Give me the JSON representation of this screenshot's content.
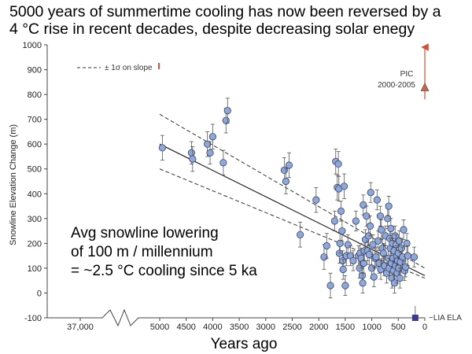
{
  "headline": {
    "line1": "5000 years of summertime cooling has now been reversed by a",
    "line2": "4 °C rise in recent decades, despite decreasing solar enegy"
  },
  "chart_data": {
    "type": "scatter",
    "xlabel": "Years ago",
    "ylabel": "Snowline Elevation Change (m)",
    "xlim": [
      5000,
      0
    ],
    "ylim": [
      -100,
      1000
    ],
    "y_ticks": [
      -100,
      0,
      100,
      200,
      300,
      400,
      500,
      600,
      700,
      800,
      900,
      1000
    ],
    "x_ticks": [
      5000,
      4500,
      4000,
      3500,
      3000,
      2500,
      2000,
      1500,
      1000,
      500,
      0
    ],
    "x_break_label": "37,000",
    "legend": {
      "label": "± 1σ on slope",
      "placement": "top-left"
    },
    "annotation": "Avg snowline lowering\nof 100 m / millennium\n= ~2.5 °C cooling since 5 ka",
    "pic": {
      "label1": "PIC",
      "label2": "2000-2005",
      "x": 0,
      "y": 830,
      "err_low": 780
    },
    "lia": {
      "label": "~LIA ELA",
      "x": 180,
      "y": -100
    },
    "fit_line": {
      "x": [
        5000,
        0
      ],
      "y": [
        600,
        70
      ]
    },
    "sigma_upper": {
      "x": [
        5000,
        0
      ],
      "y": [
        720,
        100
      ]
    },
    "sigma_lower": {
      "x": [
        5000,
        0
      ],
      "y": [
        500,
        60
      ]
    },
    "colors": {
      "point": "#8fa8d8",
      "point_edge": "#34406a",
      "arrow": "#d05038",
      "lia": "#3b3b8a"
    },
    "points": [
      {
        "x": 4950,
        "y": 585,
        "e": 50
      },
      {
        "x": 4400,
        "y": 565,
        "e": 45
      },
      {
        "x": 4380,
        "y": 540,
        "e": 50
      },
      {
        "x": 4100,
        "y": 600,
        "e": 50
      },
      {
        "x": 4050,
        "y": 565,
        "e": 45
      },
      {
        "x": 4000,
        "y": 630,
        "e": 50
      },
      {
        "x": 3800,
        "y": 525,
        "e": 50
      },
      {
        "x": 3750,
        "y": 695,
        "e": 50
      },
      {
        "x": 3720,
        "y": 735,
        "e": 50
      },
      {
        "x": 2650,
        "y": 495,
        "e": 50
      },
      {
        "x": 2620,
        "y": 450,
        "e": 50
      },
      {
        "x": 2560,
        "y": 515,
        "e": 50
      },
      {
        "x": 2350,
        "y": 235,
        "e": 50
      },
      {
        "x": 2050,
        "y": 375,
        "e": 50
      },
      {
        "x": 1900,
        "y": 145,
        "e": 50
      },
      {
        "x": 1850,
        "y": 190,
        "e": 50
      },
      {
        "x": 1780,
        "y": 30,
        "e": 50
      },
      {
        "x": 1700,
        "y": 290,
        "e": 40
      },
      {
        "x": 1680,
        "y": 530,
        "e": 50
      },
      {
        "x": 1650,
        "y": 425,
        "e": 50
      },
      {
        "x": 1630,
        "y": 520,
        "e": 50
      },
      {
        "x": 1620,
        "y": 420,
        "e": 50
      },
      {
        "x": 1610,
        "y": 160,
        "e": 40
      },
      {
        "x": 1600,
        "y": 200,
        "e": 40
      },
      {
        "x": 1580,
        "y": 330,
        "e": 40
      },
      {
        "x": 1560,
        "y": 250,
        "e": 40
      },
      {
        "x": 1550,
        "y": 130,
        "e": 40
      },
      {
        "x": 1540,
        "y": 95,
        "e": 40
      },
      {
        "x": 1520,
        "y": 430,
        "e": 50
      },
      {
        "x": 1500,
        "y": 30,
        "e": 40
      },
      {
        "x": 1480,
        "y": 150,
        "e": 40
      },
      {
        "x": 1450,
        "y": 195,
        "e": 40
      },
      {
        "x": 1400,
        "y": 150,
        "e": 40
      },
      {
        "x": 1350,
        "y": 130,
        "e": 40
      },
      {
        "x": 1300,
        "y": 290,
        "e": 40
      },
      {
        "x": 1250,
        "y": 150,
        "e": 40
      },
      {
        "x": 1230,
        "y": 100,
        "e": 40
      },
      {
        "x": 1220,
        "y": 160,
        "e": 40
      },
      {
        "x": 1200,
        "y": 140,
        "e": 40
      },
      {
        "x": 1180,
        "y": 70,
        "e": 40
      },
      {
        "x": 1170,
        "y": 40,
        "e": 40
      },
      {
        "x": 1160,
        "y": 355,
        "e": 40
      },
      {
        "x": 1150,
        "y": 120,
        "e": 40
      },
      {
        "x": 1140,
        "y": 170,
        "e": 40
      },
      {
        "x": 1120,
        "y": 215,
        "e": 40
      },
      {
        "x": 1100,
        "y": 310,
        "e": 40
      },
      {
        "x": 1080,
        "y": 170,
        "e": 40
      },
      {
        "x": 1060,
        "y": 230,
        "e": 40
      },
      {
        "x": 1050,
        "y": 155,
        "e": 40
      },
      {
        "x": 1030,
        "y": 270,
        "e": 40
      },
      {
        "x": 1020,
        "y": 405,
        "e": 40
      },
      {
        "x": 1000,
        "y": 100,
        "e": 40
      },
      {
        "x": 980,
        "y": 195,
        "e": 40
      },
      {
        "x": 960,
        "y": 65,
        "e": 40
      },
      {
        "x": 940,
        "y": 140,
        "e": 40
      },
      {
        "x": 920,
        "y": 145,
        "e": 40
      },
      {
        "x": 900,
        "y": 375,
        "e": 40
      },
      {
        "x": 880,
        "y": 210,
        "e": 40
      },
      {
        "x": 860,
        "y": 120,
        "e": 40
      },
      {
        "x": 840,
        "y": 310,
        "e": 40
      },
      {
        "x": 830,
        "y": 95,
        "e": 40
      },
      {
        "x": 820,
        "y": 255,
        "e": 40
      },
      {
        "x": 800,
        "y": 180,
        "e": 40
      },
      {
        "x": 780,
        "y": 160,
        "e": 40
      },
      {
        "x": 760,
        "y": 110,
        "e": 40
      },
      {
        "x": 740,
        "y": 230,
        "e": 40
      },
      {
        "x": 720,
        "y": 80,
        "e": 40
      },
      {
        "x": 700,
        "y": 300,
        "e": 40
      },
      {
        "x": 690,
        "y": 140,
        "e": 40
      },
      {
        "x": 680,
        "y": 350,
        "e": 40
      },
      {
        "x": 670,
        "y": 100,
        "e": 40
      },
      {
        "x": 660,
        "y": 220,
        "e": 40
      },
      {
        "x": 650,
        "y": 180,
        "e": 40
      },
      {
        "x": 640,
        "y": 260,
        "e": 40
      },
      {
        "x": 630,
        "y": 120,
        "e": 40
      },
      {
        "x": 620,
        "y": 60,
        "e": 40
      },
      {
        "x": 610,
        "y": 200,
        "e": 40
      },
      {
        "x": 600,
        "y": 140,
        "e": 40
      },
      {
        "x": 590,
        "y": 90,
        "e": 40
      },
      {
        "x": 580,
        "y": 170,
        "e": 40
      },
      {
        "x": 570,
        "y": 40,
        "e": 40
      },
      {
        "x": 560,
        "y": 230,
        "e": 40
      },
      {
        "x": 550,
        "y": 110,
        "e": 40
      },
      {
        "x": 540,
        "y": 195,
        "e": 40
      },
      {
        "x": 530,
        "y": 150,
        "e": 40
      },
      {
        "x": 520,
        "y": 80,
        "e": 40
      },
      {
        "x": 510,
        "y": 130,
        "e": 40
      },
      {
        "x": 500,
        "y": 160,
        "e": 40
      },
      {
        "x": 490,
        "y": 100,
        "e": 40
      },
      {
        "x": 480,
        "y": 210,
        "e": 40
      },
      {
        "x": 470,
        "y": 60,
        "e": 40
      },
      {
        "x": 460,
        "y": 125,
        "e": 40
      },
      {
        "x": 440,
        "y": 180,
        "e": 40
      },
      {
        "x": 420,
        "y": 145,
        "e": 40
      },
      {
        "x": 400,
        "y": 255,
        "e": 40
      },
      {
        "x": 380,
        "y": 90,
        "e": 40
      },
      {
        "x": 360,
        "y": 105,
        "e": 40
      },
      {
        "x": 340,
        "y": 200,
        "e": 40
      },
      {
        "x": 320,
        "y": 150,
        "e": 40
      },
      {
        "x": 200,
        "y": 145,
        "e": 40
      }
    ]
  }
}
